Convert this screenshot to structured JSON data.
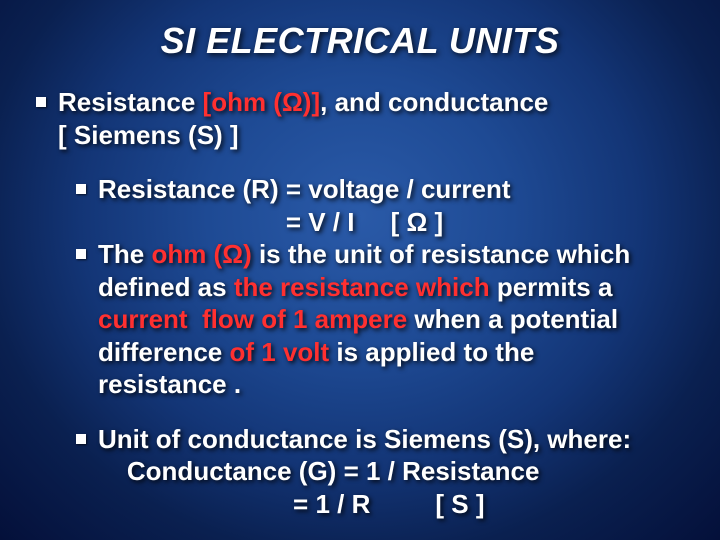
{
  "slide": {
    "background": {
      "type": "radial-gradient",
      "center_color": "#2a5aa8",
      "edge_color": "#04103a"
    },
    "title": {
      "text": "SI ELECTRICAL UNITS",
      "font_size": 36,
      "color": "#ffffff",
      "italic": true,
      "bold": true
    },
    "text_color": "#ffffff",
    "highlight_color": "#ff3030",
    "bullet_color": "#ffffff",
    "font_size_body": 26,
    "b1a_pre": "Resistance ",
    "b1a_red": "[ohm (Ω)]",
    "b1a_post": ", and conductance",
    "b1b": "[ Siemens (S) ]",
    "b2a": "Resistance (R) = voltage / current",
    "b2b": "                          = V / I     [ Ω ]",
    "b3a_pre": "The ",
    "b3a_red": "ohm (Ω)",
    "b3a_post": " is the unit of resistance which",
    "b3b_pre": "defined as ",
    "b3b_red": "the resistance which",
    "b3b_post": " permits a",
    "b3c_red": "current  flow of 1 ampere",
    "b3c_post": " when a potential",
    "b3d_pre": "difference ",
    "b3d_red": "of 1 volt",
    "b3d_post": " is applied to the",
    "b3e": "resistance .",
    "b4a": "Unit of conductance is Siemens (S), where:",
    "b4b": "    Conductance (G) = 1 / Resistance",
    "b4c": "                           = 1 / R         [ S ]"
  }
}
